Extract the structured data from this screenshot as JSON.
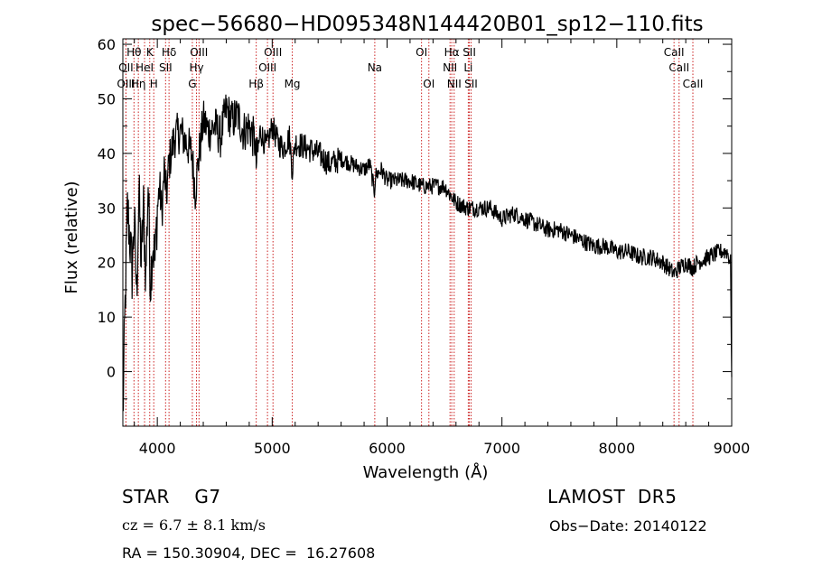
{
  "chart_data": {
    "type": "line",
    "title": "spec−56680−HD095348N144420B01_sp12−110.fits",
    "xlabel": "Wavelength (Å)",
    "ylabel": "Flux (relative)",
    "xlim": [
      3700,
      9000
    ],
    "ylim": [
      -10,
      61
    ],
    "xticks": [
      4000,
      5000,
      6000,
      7000,
      8000,
      9000
    ],
    "yticks": [
      0,
      10,
      20,
      30,
      40,
      50,
      60
    ],
    "grid": false,
    "legend": "none",
    "colors": {
      "spectrum": "#000000",
      "lines": "#cc2222",
      "text": "#000000"
    },
    "series": [
      {
        "x": [
          3700,
          3720,
          3740,
          3760,
          3780,
          3800,
          3820,
          3840,
          3860,
          3880,
          3900,
          3920,
          3940,
          3960,
          3980,
          4000,
          4020,
          4040,
          4060,
          4080,
          4100,
          4150,
          4200,
          4250,
          4300,
          4330,
          4360,
          4400,
          4450,
          4500,
          4550,
          4600,
          4650,
          4700,
          4750,
          4800,
          4850,
          4861,
          4900,
          4950,
          5000,
          5050,
          5100,
          5150,
          5175,
          5200,
          5300,
          5400,
          5500,
          5600,
          5700,
          5800,
          5850,
          5890,
          5900,
          5950,
          6000,
          6100,
          6200,
          6300,
          6400,
          6500,
          6563,
          6600,
          6700,
          6800,
          6900,
          7000,
          7100,
          7200,
          7300,
          7400,
          7500,
          7600,
          7700,
          7800,
          7900,
          8000,
          8100,
          8200,
          8300,
          8400,
          8498,
          8542,
          8600,
          8662,
          8700,
          8800,
          8900,
          8960,
          8990,
          9000
        ],
        "y": [
          -9,
          12,
          30,
          25,
          18,
          28,
          14,
          33,
          20,
          30,
          17,
          35,
          16,
          24,
          20,
          30,
          34,
          29,
          37,
          32,
          38,
          43,
          44,
          42,
          40,
          33,
          39,
          46,
          44,
          45,
          43,
          48,
          46,
          47,
          44,
          45,
          42,
          38,
          44,
          41,
          45,
          42,
          41,
          43,
          37,
          42,
          41,
          40,
          38,
          39,
          38,
          37,
          38,
          33,
          36,
          37,
          35,
          35,
          35,
          34,
          34,
          34,
          32,
          31,
          30,
          30,
          30,
          28,
          29,
          28,
          27,
          26,
          26,
          25,
          24,
          23,
          23,
          22,
          22,
          21,
          21,
          20,
          18,
          19,
          20,
          19,
          20,
          21,
          22,
          22,
          20,
          -1
        ]
      }
    ],
    "lines": [
      {
        "label": "OII",
        "x": 3727,
        "row": 1
      },
      {
        "label": "OIII",
        "x": 3727,
        "row": 2
      },
      {
        "label": "Hθ",
        "x": 3797,
        "row": 0
      },
      {
        "label": "Hη",
        "x": 3835,
        "row": 2
      },
      {
        "label": "HeI",
        "x": 3889,
        "row": 1
      },
      {
        "label": "K",
        "x": 3934,
        "row": 0
      },
      {
        "label": "H",
        "x": 3969,
        "row": 2
      },
      {
        "label": "SII",
        "x": 4072,
        "row": 1
      },
      {
        "label": "Hδ",
        "x": 4102,
        "row": 0
      },
      {
        "label": "G",
        "x": 4305,
        "row": 2
      },
      {
        "label": "Hγ",
        "x": 4341,
        "row": 1
      },
      {
        "label": "OIII",
        "x": 4363,
        "row": 0
      },
      {
        "label": "Hβ",
        "x": 4861,
        "row": 2
      },
      {
        "label": "OIII",
        "x": 4959,
        "row": 1
      },
      {
        "label": "OIII",
        "x": 5007,
        "row": 0
      },
      {
        "label": "Mg",
        "x": 5175,
        "row": 2
      },
      {
        "label": "Na",
        "x": 5893,
        "row": 1
      },
      {
        "label": "OI",
        "x": 6300,
        "row": 0
      },
      {
        "label": "OI",
        "x": 6364,
        "row": 2
      },
      {
        "label": "NII",
        "x": 6548,
        "row": 1
      },
      {
        "label": "Hα",
        "x": 6563,
        "row": 0
      },
      {
        "label": "NII",
        "x": 6584,
        "row": 2
      },
      {
        "label": "Li",
        "x": 6707,
        "row": 1
      },
      {
        "label": "SII",
        "x": 6716,
        "row": 0
      },
      {
        "label": "SII",
        "x": 6731,
        "row": 2
      },
      {
        "label": "CaII",
        "x": 8498,
        "row": 0
      },
      {
        "label": "CaII",
        "x": 8542,
        "row": 1
      },
      {
        "label": "CaII",
        "x": 8662,
        "row": 2
      }
    ]
  },
  "info": {
    "object_class": "STAR",
    "subclass": "G7",
    "survey": "LAMOST  DR5",
    "cz": "cz = 6.7 ± 8.1 km/s",
    "obs_date": "Obs−Date: 20140122",
    "radec": "RA = 150.30904, DEC =  16.27608"
  }
}
